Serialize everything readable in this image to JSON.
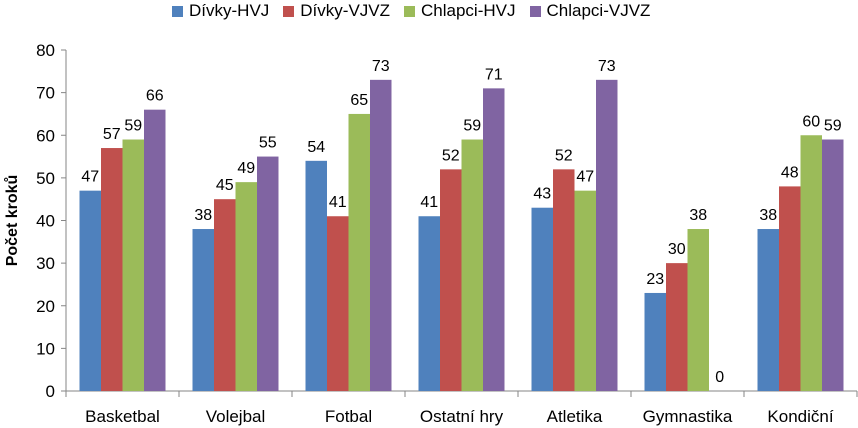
{
  "chart_data": {
    "type": "bar",
    "title": "",
    "xlabel": "",
    "ylabel": "Počet kroků",
    "ylim": [
      0,
      80
    ],
    "yticks": [
      0,
      10,
      20,
      30,
      40,
      50,
      60,
      70,
      80
    ],
    "grid": false,
    "legend_position": "top",
    "categories": [
      "Basketbal",
      "Volejbal",
      "Fotbal",
      "Ostatní hry",
      "Atletika",
      "Gymnastika",
      "Kondiční"
    ],
    "series": [
      {
        "name": "Dívky-HVJ",
        "color": "#4F81BD",
        "values": [
          47,
          38,
          54,
          41,
          43,
          23,
          38
        ]
      },
      {
        "name": "Dívky-VJVZ",
        "color": "#C0504D",
        "values": [
          57,
          45,
          41,
          52,
          52,
          30,
          48
        ]
      },
      {
        "name": "Chlapci-HVJ",
        "color": "#9BBB59",
        "values": [
          59,
          49,
          65,
          59,
          47,
          38,
          60
        ]
      },
      {
        "name": "Chlapci-VJVZ",
        "color": "#8064A2",
        "values": [
          66,
          55,
          73,
          71,
          73,
          0,
          59
        ]
      }
    ]
  }
}
